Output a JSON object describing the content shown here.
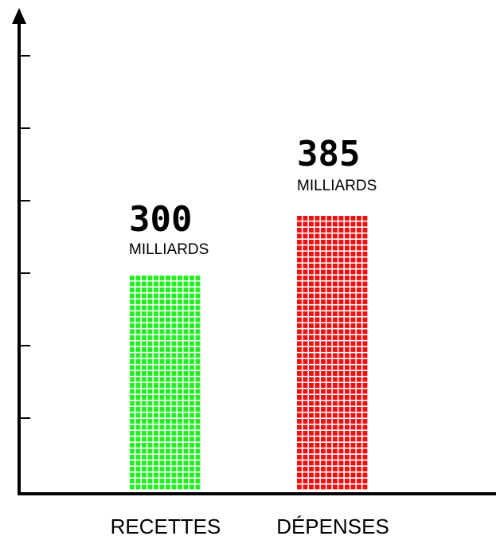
{
  "chart_data": {
    "type": "bar",
    "categories": [
      "RECETTES",
      "DÉPENSES"
    ],
    "values": [
      300,
      385
    ],
    "value_labels": [
      "300",
      "385"
    ],
    "unit": "MILLIARDS",
    "ylim": [
      0,
      600
    ],
    "grid": false,
    "colors": [
      "#22ee22",
      "#ee1111"
    ]
  }
}
